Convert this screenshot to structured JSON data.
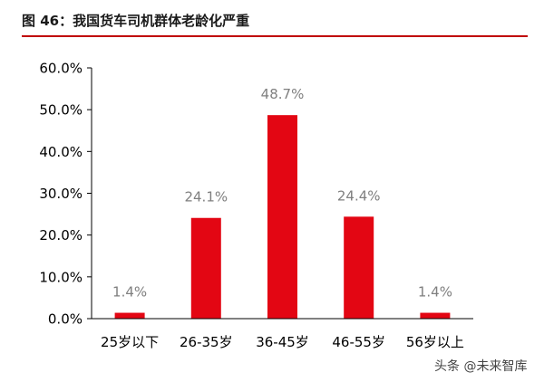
{
  "figure": {
    "title": "图 46：我国货车司机群体老龄化严重"
  },
  "watermark": "头条 @未来智库",
  "colors": {
    "bar": "#e30613",
    "title_rule": "#c00000",
    "axis": "#000000",
    "data_label": "#7f7f7f"
  },
  "chart_data": {
    "type": "bar",
    "title": "",
    "xlabel": "",
    "ylabel": "",
    "categories": [
      "25岁以下",
      "26-35岁",
      "36-45岁",
      "46-55岁",
      "56岁以上"
    ],
    "values": [
      1.4,
      24.1,
      48.7,
      24.4,
      1.4
    ],
    "data_labels": [
      "1.4%",
      "24.1%",
      "48.7%",
      "24.4%",
      "1.4%"
    ],
    "ylim": [
      0,
      60
    ],
    "yticks": [
      0,
      10,
      20,
      30,
      40,
      50,
      60
    ],
    "ytick_labels": [
      "0.0%",
      "10.0%",
      "20.0%",
      "30.0%",
      "40.0%",
      "50.0%",
      "60.0%"
    ],
    "grid": false,
    "legend": "none"
  }
}
